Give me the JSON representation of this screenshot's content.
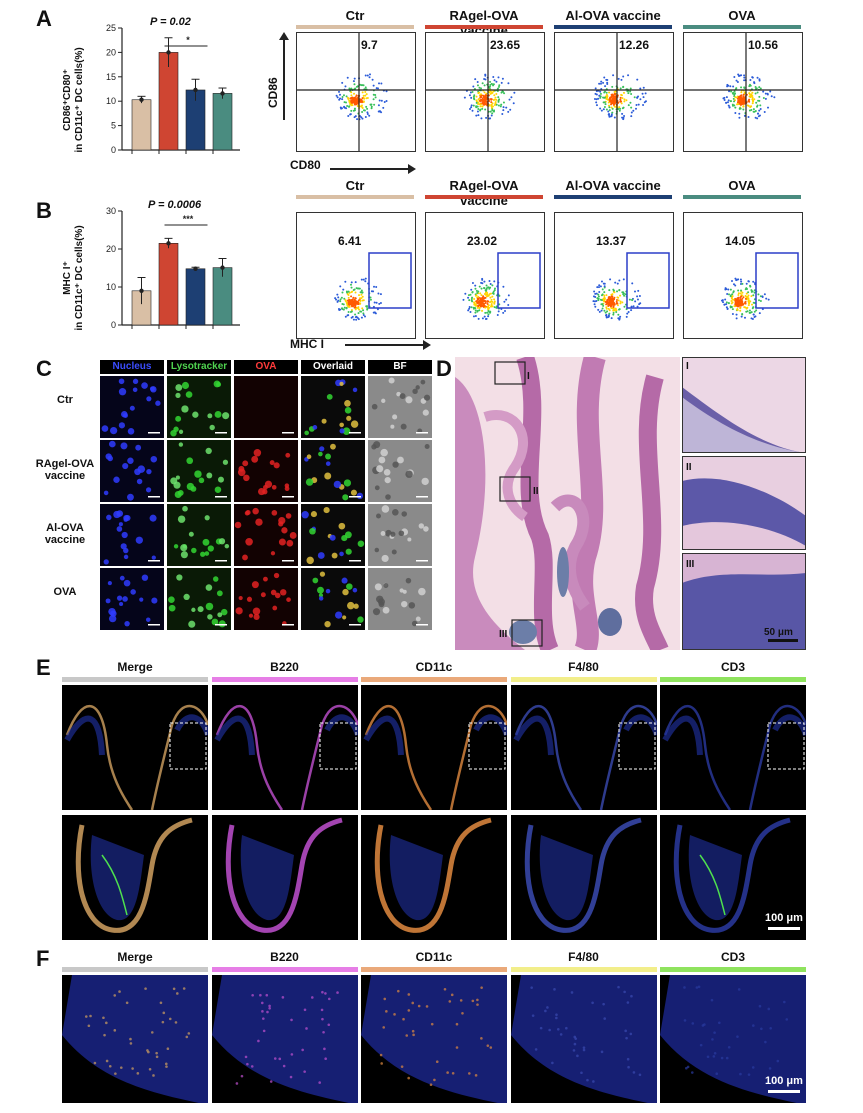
{
  "panels": {
    "A": "A",
    "B": "B",
    "C": "C",
    "D": "D",
    "E": "E",
    "F": "F"
  },
  "colors": {
    "ctr": "#d9bfa5",
    "ragel": "#cf4532",
    "al": "#1d3f73",
    "ova": "#4a8c80"
  },
  "panelA": {
    "ptext": "P = 0.02",
    "sig": "*",
    "ylabel_line1": "CD86⁺CD80⁺",
    "ylabel_line2": "in CD11c⁺ DC cells(%)",
    "yticks": [
      "0",
      "5",
      "10",
      "15",
      "20",
      "25"
    ],
    "chart_data": {
      "type": "bar",
      "categories": [
        "Ctr",
        "RAgel-OVA vaccine",
        "Al-OVA vaccine",
        "OVA"
      ],
      "values": [
        10.3,
        20.0,
        12.3,
        11.6
      ],
      "errors": [
        0.7,
        3.0,
        2.2,
        1.1
      ],
      "ylim": [
        0,
        25
      ]
    },
    "flow": {
      "headers": [
        "Ctr",
        "RAgel-OVA vaccine",
        "Al-OVA vaccine",
        "OVA"
      ],
      "values": [
        "9.7",
        "23.65",
        "12.26",
        "10.56"
      ],
      "xaxis": "CD80",
      "yaxis": "CD86"
    }
  },
  "panelB": {
    "ptext": "P = 0.0006",
    "sig": "***",
    "ylabel_line1": "MHC I⁺",
    "ylabel_line2": "in CD11c⁺ DC cells(%)",
    "yticks": [
      "0",
      "10",
      "20",
      "30"
    ],
    "chart_data": {
      "type": "bar",
      "categories": [
        "Ctr",
        "RAgel-OVA vaccine",
        "Al-OVA vaccine",
        "OVA"
      ],
      "values": [
        9.0,
        21.5,
        14.8,
        15.1
      ],
      "errors": [
        3.5,
        1.3,
        0.4,
        2.4
      ],
      "ylim": [
        0,
        30
      ]
    },
    "flow": {
      "headers": [
        "Ctr",
        "RAgel-OVA vaccine",
        "Al-OVA vaccine",
        "OVA"
      ],
      "values": [
        "6.41",
        "23.02",
        "13.37",
        "14.05"
      ],
      "xaxis": "MHC I"
    }
  },
  "panelC": {
    "columns": [
      "Nucleus",
      "Lysotracker",
      "OVA",
      "Overlaid",
      "BF"
    ],
    "column_colors": [
      "#3b4dff",
      "#4fd34f",
      "#ff3b3b",
      "#ffffff",
      "#ffffff"
    ],
    "rows": [
      "Ctr",
      "RAgel-OVA vaccine",
      "Al-OVA vaccine",
      "OVA"
    ]
  },
  "panelD": {
    "regions": [
      "I",
      "II",
      "III"
    ],
    "scale": "50 μm"
  },
  "panelE": {
    "headers": [
      "Merge",
      "B220",
      "CD11c",
      "F4/80",
      "CD3"
    ],
    "stripe_colors": [
      "#c8c8c8",
      "#e67ee6",
      "#eaa97a",
      "#f2ee8a",
      "#8fe35e"
    ],
    "scale": "100 μm"
  },
  "panelF": {
    "headers": [
      "Merge",
      "B220",
      "CD11c",
      "F4/80",
      "CD3"
    ],
    "scale": "100 μm"
  }
}
